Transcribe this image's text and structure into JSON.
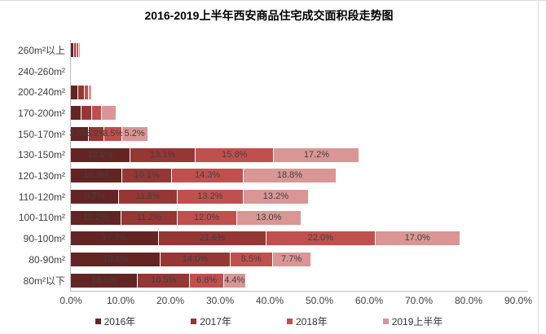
{
  "chart_data": {
    "type": "bar",
    "variant": "horizontal-stacked",
    "title": "2016-2019上半年西安商品住宅成交面积段走势图",
    "categories": [
      "260m²以上",
      "240-260m²",
      "200-240m²",
      "170-200m²",
      "150-170m²",
      "130-150m²",
      "120-130m²",
      "110-120m²",
      "100-110m²",
      "90-100m²",
      "80-90m²",
      "80m²以下"
    ],
    "series": [
      {
        "name": "2016年",
        "color": "#632523",
        "values": [
          0.7,
          0.1,
          1.5,
          2.1,
          3.6,
          12.0,
          10.3,
          9.7,
          10.2,
          17.7,
          18.1,
          13.5
        ]
      },
      {
        "name": "2017年",
        "color": "#953735",
        "values": [
          0.5,
          0.1,
          1.3,
          2.1,
          3.2,
          13.1,
          10.1,
          11.8,
          11.2,
          21.6,
          14.0,
          10.5
        ]
      },
      {
        "name": "2018年",
        "color": "#c0504d",
        "values": [
          0.5,
          0.1,
          0.8,
          2.0,
          3.5,
          15.8,
          14.3,
          13.2,
          12.0,
          22.0,
          8.5,
          6.8
        ]
      },
      {
        "name": "2019上半年",
        "color": "#d99694",
        "values": [
          0.2,
          0.2,
          0.7,
          3.0,
          5.2,
          17.2,
          18.8,
          13.2,
          13.0,
          17.0,
          7.7,
          4.4
        ]
      }
    ],
    "labels_visible_per_category": [
      false,
      false,
      false,
      false,
      true,
      true,
      true,
      true,
      true,
      true,
      true,
      true
    ],
    "label_suffix": "%",
    "xlim": [
      0,
      90
    ],
    "x_ticks": [
      "0.0%",
      "10.0%",
      "20.0%",
      "30.0%",
      "40.0%",
      "50.0%",
      "60.0%",
      "70.0%",
      "80.0%",
      "90.0%"
    ],
    "grid": false,
    "legend_position": "bottom",
    "axis_color": "#bfbfbf",
    "label_text_color": "#404040"
  }
}
